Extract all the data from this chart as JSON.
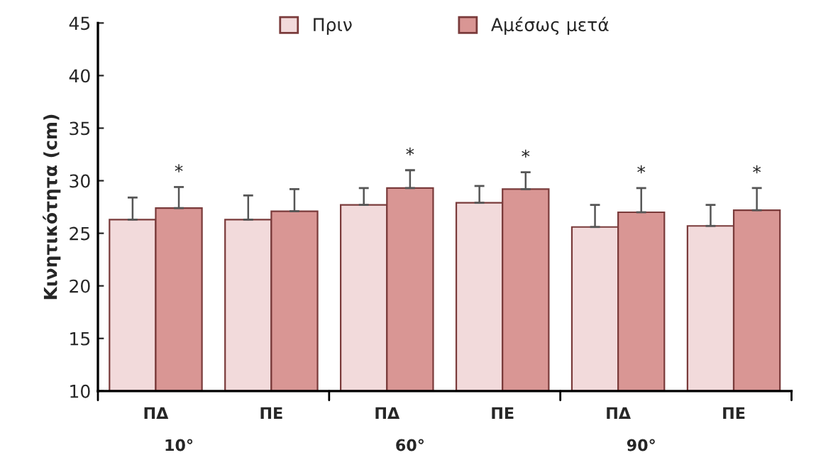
{
  "chart_data": {
    "type": "bar",
    "ylabel": "Κινητικότητα (cm)",
    "categories": [
      "ΠΔ",
      "ΠΕ",
      "ΠΔ",
      "ΠΕ",
      "ΠΔ",
      "ΠΕ"
    ],
    "series": [
      {
        "name": "Πριν",
        "color": "#f2dadb",
        "values": [
          26.3,
          26.3,
          27.7,
          27.9,
          25.6,
          25.7
        ],
        "errors": [
          [
            26.3,
            28.4
          ],
          [
            26.3,
            28.6
          ],
          [
            27.7,
            29.3
          ],
          [
            27.9,
            29.5
          ],
          [
            25.6,
            27.7
          ],
          [
            25.7,
            27.7
          ]
        ]
      },
      {
        "name": "Αμέσως μετά",
        "color": "#d99694",
        "values": [
          27.4,
          27.1,
          29.3,
          29.2,
          27.0,
          27.2
        ],
        "errors": [
          [
            27.4,
            29.4
          ],
          [
            27.1,
            29.2
          ],
          [
            29.3,
            31.0
          ],
          [
            29.2,
            30.8
          ],
          [
            27.0,
            29.3
          ],
          [
            27.2,
            29.3
          ]
        ],
        "value_labels": [
          "*",
          null,
          "*",
          "*",
          "*",
          "*"
        ]
      }
    ],
    "annotations": [
      "10°",
      "60°",
      "90°"
    ],
    "ylim": [
      10,
      45
    ],
    "yticks": [
      10,
      15,
      20,
      25,
      30,
      35,
      40,
      45
    ],
    "grid": false,
    "legend": "top"
  }
}
